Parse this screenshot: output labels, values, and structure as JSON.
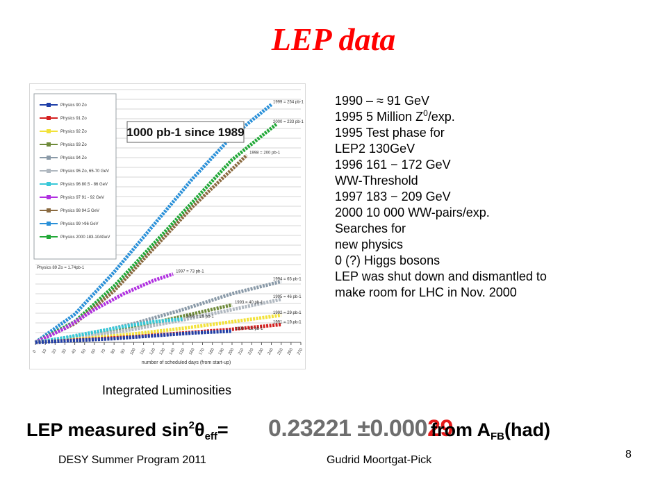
{
  "slide": {
    "title": "LEP data",
    "caption": "Integrated Luminosities",
    "footer_left": "DESY Summer Program 2011",
    "footer_center": "Gudrid Moortgat-Pick",
    "page_number": "8"
  },
  "info_lines": [
    {
      "pre": "1990 – ≈ 91 GeV",
      "sup": "",
      "post": ""
    },
    {
      "pre": "1995 5 Million Z",
      "sup": "0",
      "post": "/exp."
    },
    {
      "pre": "1995 Test phase for",
      "sup": "",
      "post": ""
    },
    {
      "pre": "LEP2 130GeV",
      "sup": "",
      "post": ""
    },
    {
      "pre": "1996 161 − 172 GeV",
      "sup": "",
      "post": ""
    },
    {
      "pre": "WW-Threshold",
      "sup": "",
      "post": ""
    },
    {
      "pre": "1997 183 − 209 GeV",
      "sup": "",
      "post": ""
    },
    {
      "pre": "2000 10 000 WW-pairs/exp.",
      "sup": "",
      "post": ""
    },
    {
      "pre": "Searches for",
      "sup": "",
      "post": ""
    },
    {
      "pre": "new physics",
      "sup": "",
      "post": ""
    },
    {
      "pre": "0 (?) Higgs bosons",
      "sup": "",
      "post": ""
    },
    {
      "pre": "LEP was shut down and dismantled to",
      "sup": "",
      "post": ""
    },
    {
      "pre": "make room for LHC in Nov. 2000",
      "sup": "",
      "post": ""
    }
  ],
  "measurement": {
    "label_pre": "LEP measured sin",
    "label_sup": "2",
    "label_theta": "θ",
    "label_sub": "eff",
    "label_eq": "=",
    "value_main": "0.23221 ±0.000",
    "value_red": "29",
    "from_pre": "from  A",
    "from_sub": "FB",
    "from_post": "(had)"
  },
  "chart_data": {
    "type": "line",
    "annotation": "1000 pb-1 since 1989",
    "xlabel": "number of scheduled days (from start-up)",
    "legend_position": "top-left",
    "legend": [
      {
        "name": "Physics 90   Zo",
        "color": "#1f3fa8"
      },
      {
        "name": "Physics 91   Zo",
        "color": "#d42020"
      },
      {
        "name": "Physics 92   Zo",
        "color": "#f2e23a"
      },
      {
        "name": "Physics 93   Zo",
        "color": "#6e8a3a"
      },
      {
        "name": "Physics 94   Zo",
        "color": "#8a9aa8"
      },
      {
        "name": "Physics 95   Zo, 65-70 GeV",
        "color": "#b0b8c0"
      },
      {
        "name": "Physics 96   80.5 - 86 GeV",
        "color": "#38c8d8"
      },
      {
        "name": "Physics 97   91 - 92 GeV",
        "color": "#b030e0"
      },
      {
        "name": "Physics 98   94.5 GeV",
        "color": "#8a6a40"
      },
      {
        "name": "Physics 99   >96 GeV",
        "color": "#2a90d8"
      },
      {
        "name": "Physics 2000  183-104GeV",
        "color": "#22a838"
      }
    ],
    "legend_note": "Physics 89 Zo = 1.74pb-1",
    "series": [
      {
        "name": "1999",
        "color": "#2a90d8",
        "end_label": "1999 = 254 pb-1",
        "x": [
          0,
          40,
          80,
          120,
          160,
          200,
          240
        ],
        "y": [
          0,
          30,
          75,
          125,
          175,
          220,
          254
        ]
      },
      {
        "name": "2000",
        "color": "#22a838",
        "end_label": "2000 = 233 pb-1",
        "x": [
          0,
          40,
          80,
          120,
          160,
          200,
          245
        ],
        "y": [
          0,
          22,
          60,
          105,
          150,
          195,
          233
        ]
      },
      {
        "name": "1998",
        "color": "#8a6a40",
        "end_label": "1998 = 200 pb-1",
        "x": [
          0,
          40,
          80,
          120,
          160,
          200,
          215
        ],
        "y": [
          0,
          20,
          55,
          100,
          145,
          185,
          200
        ]
      },
      {
        "name": "1997",
        "color": "#b030e0",
        "end_label": "1997 = 73 pb-1",
        "x": [
          0,
          30,
          60,
          90,
          120,
          140
        ],
        "y": [
          0,
          15,
          35,
          52,
          66,
          73
        ]
      },
      {
        "name": "1994",
        "color": "#8a9aa8",
        "end_label": "1994 = 65 pb-1",
        "x": [
          0,
          50,
          100,
          150,
          200,
          250
        ],
        "y": [
          0,
          8,
          20,
          35,
          52,
          65
        ]
      },
      {
        "name": "1993",
        "color": "#6e8a3a",
        "end_label": "1993 = 40 pb-1",
        "x": [
          0,
          50,
          100,
          150,
          200
        ],
        "y": [
          0,
          7,
          16,
          28,
          40
        ]
      },
      {
        "name": "1995",
        "color": "#b0b8c0",
        "end_label": "1995 = 46 pb-1",
        "x": [
          0,
          50,
          100,
          150,
          200,
          250
        ],
        "y": [
          0,
          6,
          14,
          24,
          35,
          46
        ]
      },
      {
        "name": "1992",
        "color": "#f2e23a",
        "end_label": "1992 = 29 pb-1",
        "x": [
          0,
          50,
          100,
          150,
          200,
          250
        ],
        "y": [
          0,
          4,
          9,
          15,
          22,
          29
        ]
      },
      {
        "name": "1996",
        "color": "#38c8d8",
        "end_label": "1996 = 25 pb-1",
        "x": [
          0,
          30,
          60,
          90,
          120,
          150
        ],
        "y": [
          0,
          5,
          11,
          17,
          22,
          25
        ]
      },
      {
        "name": "1991",
        "color": "#d42020",
        "end_label": "1991 = 19 pb-1",
        "x": [
          0,
          50,
          100,
          150,
          200,
          250
        ],
        "y": [
          0,
          3,
          6,
          10,
          14,
          19
        ]
      },
      {
        "name": "1990",
        "color": "#1f3fa8",
        "end_label": "1990 = 12 pb-1",
        "x": [
          0,
          40,
          80,
          120,
          160,
          200
        ],
        "y": [
          0,
          2,
          4,
          7,
          10,
          12
        ]
      }
    ],
    "xlim": [
      0,
      270
    ],
    "ylim": [
      0,
      270
    ],
    "grid": true
  }
}
